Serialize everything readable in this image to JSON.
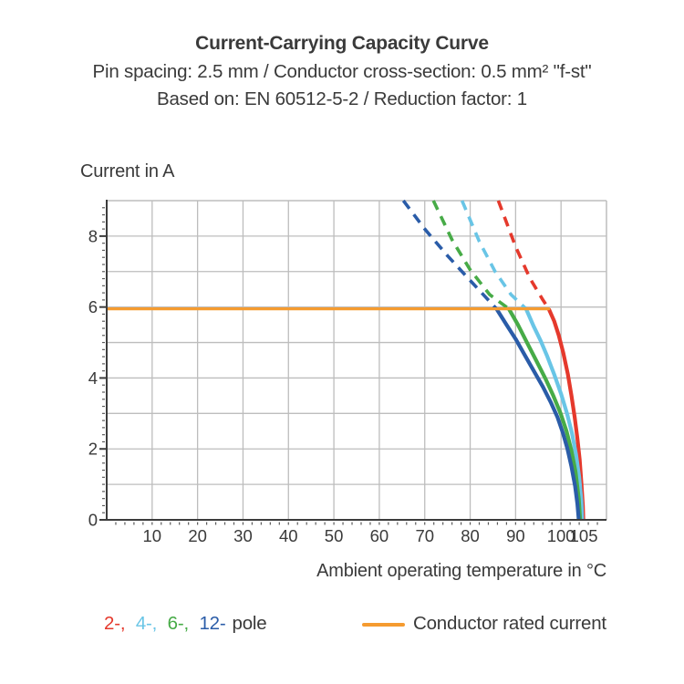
{
  "header": {
    "title": "Current-Carrying Capacity Curve",
    "subtitle1": "Pin spacing: 2.5 mm / Conductor cross-section: 0.5 mm² \"f-st\"",
    "subtitle2": "Based on: EN 60512-5-2 / Reduction factor: 1"
  },
  "axes": {
    "y_title": "Current in A",
    "x_title": "Ambient operating temperature in °C"
  },
  "legend": {
    "poles": [
      {
        "label": "2-,",
        "color": "#e5392c"
      },
      {
        "label": "4-,",
        "color": "#69c5e6"
      },
      {
        "label": "6-,",
        "color": "#47ab47"
      },
      {
        "label": "12-",
        "color": "#2a5ca8"
      }
    ],
    "pole_suffix": "pole",
    "rated_label": "Conductor rated current",
    "rated_color": "#f59b30"
  },
  "chart_data": {
    "type": "line",
    "title": "Current-Carrying Capacity Curve",
    "xlabel": "Ambient operating temperature in °C",
    "ylabel": "Current in A",
    "xlim": [
      0,
      110
    ],
    "ylim": [
      0,
      9
    ],
    "x_ticks": [
      10,
      20,
      30,
      40,
      50,
      60,
      70,
      80,
      90,
      100,
      105
    ],
    "y_ticks": [
      0,
      2,
      4,
      6,
      8
    ],
    "grid": true,
    "grid_color": "#bdbdbd",
    "axis_color": "#3c3c3c",
    "rated_current": {
      "label": "Conductor rated current",
      "value": 5.95,
      "x_start": 0,
      "x_end": 97.3,
      "color": "#f59b30"
    },
    "series": [
      {
        "name": "2-pole",
        "color": "#e5392c",
        "dashed": [
          [
            86.2,
            9
          ],
          [
            90,
            7.7
          ],
          [
            93.2,
            6.8
          ],
          [
            96,
            6.2
          ],
          [
            97.3,
            5.95
          ]
        ],
        "solid": [
          [
            97.3,
            5.95
          ],
          [
            98.5,
            5.6
          ],
          [
            99.5,
            5.2
          ],
          [
            100.5,
            4.7
          ],
          [
            101.5,
            4.1
          ],
          [
            102.3,
            3.5
          ],
          [
            103,
            2.9
          ],
          [
            103.6,
            2.3
          ],
          [
            104.1,
            1.7
          ],
          [
            104.5,
            1.0
          ],
          [
            104.8,
            0.4
          ],
          [
            104.9,
            0
          ]
        ]
      },
      {
        "name": "4-pole",
        "color": "#69c5e6",
        "dashed": [
          [
            78.2,
            9
          ],
          [
            82,
            7.85
          ],
          [
            85.5,
            7.0
          ],
          [
            89,
            6.35
          ],
          [
            92.3,
            5.95
          ]
        ],
        "solid": [
          [
            92.3,
            5.95
          ],
          [
            94,
            5.45
          ],
          [
            95.5,
            5.05
          ],
          [
            97,
            4.6
          ],
          [
            98.5,
            4.1
          ],
          [
            100,
            3.55
          ],
          [
            101.3,
            3.0
          ],
          [
            102.4,
            2.45
          ],
          [
            103.3,
            1.85
          ],
          [
            104,
            1.2
          ],
          [
            104.5,
            0.5
          ],
          [
            104.65,
            0
          ]
        ]
      },
      {
        "name": "6-pole",
        "color": "#47ab47",
        "dashed": [
          [
            71.9,
            9
          ],
          [
            76,
            7.9
          ],
          [
            80,
            7.05
          ],
          [
            84.3,
            6.35
          ],
          [
            88.5,
            5.95
          ]
        ],
        "solid": [
          [
            88.5,
            5.95
          ],
          [
            90.5,
            5.5
          ],
          [
            92.5,
            5.0
          ],
          [
            94.5,
            4.5
          ],
          [
            96.5,
            4.0
          ],
          [
            98.3,
            3.5
          ],
          [
            99.9,
            3.0
          ],
          [
            101.2,
            2.5
          ],
          [
            102.3,
            1.95
          ],
          [
            103.2,
            1.35
          ],
          [
            103.9,
            0.6
          ],
          [
            104.2,
            0
          ]
        ]
      },
      {
        "name": "12-pole",
        "color": "#2a5ca8",
        "dashed": [
          [
            65.3,
            9
          ],
          [
            70,
            8.2
          ],
          [
            75,
            7.45
          ],
          [
            80,
            6.75
          ],
          [
            85.8,
            5.95
          ]
        ],
        "solid": [
          [
            85.8,
            5.95
          ],
          [
            88,
            5.5
          ],
          [
            90,
            5.1
          ],
          [
            92,
            4.65
          ],
          [
            94,
            4.2
          ],
          [
            96,
            3.75
          ],
          [
            97.8,
            3.3
          ],
          [
            99.2,
            2.9
          ],
          [
            100.4,
            2.45
          ],
          [
            101.4,
            2.0
          ],
          [
            102.3,
            1.5
          ],
          [
            103.1,
            0.95
          ],
          [
            103.6,
            0.45
          ],
          [
            103.9,
            0
          ]
        ]
      }
    ]
  }
}
